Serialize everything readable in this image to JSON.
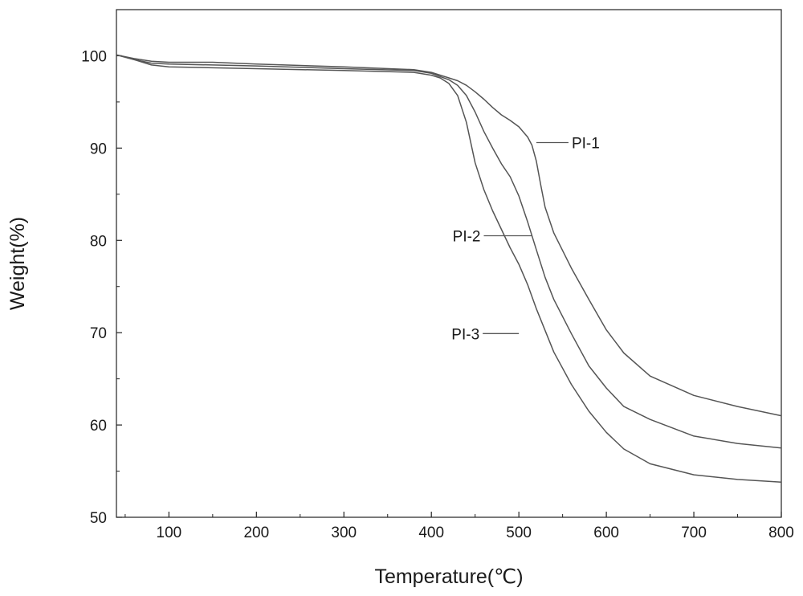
{
  "chart_data": {
    "type": "line",
    "title": "",
    "xlabel": "Temperature(℃)",
    "ylabel": "Weight(%)",
    "xlim": [
      40,
      800
    ],
    "ylim": [
      50,
      105
    ],
    "xticks": [
      100,
      200,
      300,
      400,
      500,
      600,
      700,
      800
    ],
    "yticks": [
      50,
      60,
      70,
      80,
      90,
      100
    ],
    "grid": false,
    "legend": "none",
    "line_color": "#555555",
    "series": [
      {
        "name": "PI-1",
        "label_at": [
          520,
          90.6
        ],
        "x": [
          40,
          60,
          80,
          100,
          150,
          200,
          300,
          380,
          400,
          420,
          430,
          440,
          450,
          460,
          470,
          480,
          490,
          500,
          510,
          515,
          520,
          525,
          530,
          540,
          560,
          580,
          600,
          620,
          650,
          700,
          750,
          800
        ],
        "y": [
          100.1,
          99.7,
          99.4,
          99.3,
          99.3,
          99.1,
          98.8,
          98.5,
          98.2,
          97.6,
          97.3,
          96.8,
          96.1,
          95.3,
          94.4,
          93.6,
          93.0,
          92.3,
          91.2,
          90.3,
          88.6,
          86.0,
          83.6,
          80.8,
          77.0,
          73.6,
          70.3,
          67.8,
          65.3,
          63.2,
          62.0,
          61.0
        ]
      },
      {
        "name": "PI-2",
        "label_at": [
          515,
          80.5
        ],
        "x": [
          40,
          60,
          80,
          100,
          150,
          200,
          300,
          380,
          400,
          420,
          430,
          440,
          450,
          460,
          470,
          480,
          490,
          500,
          510,
          520,
          530,
          540,
          560,
          580,
          600,
          620,
          650,
          700,
          750,
          800
        ],
        "y": [
          100.1,
          99.6,
          99.2,
          99.1,
          99.0,
          98.9,
          98.6,
          98.4,
          98.1,
          97.4,
          96.8,
          95.7,
          93.9,
          91.8,
          90.0,
          88.3,
          86.9,
          84.8,
          82.0,
          79.0,
          76.0,
          73.6,
          69.9,
          66.4,
          64.0,
          62.0,
          60.6,
          58.8,
          58.0,
          57.5
        ]
      },
      {
        "name": "PI-3",
        "label_at": [
          500,
          69.9
        ],
        "x": [
          40,
          60,
          80,
          100,
          150,
          200,
          300,
          380,
          400,
          410,
          420,
          430,
          440,
          450,
          460,
          470,
          480,
          490,
          500,
          510,
          520,
          540,
          560,
          580,
          600,
          620,
          650,
          700,
          750,
          800
        ],
        "y": [
          100.1,
          99.6,
          99.0,
          98.8,
          98.7,
          98.6,
          98.4,
          98.2,
          97.9,
          97.6,
          97.0,
          95.7,
          92.8,
          88.4,
          85.5,
          83.2,
          81.2,
          79.2,
          77.4,
          75.2,
          72.6,
          67.9,
          64.4,
          61.5,
          59.2,
          57.4,
          55.8,
          54.6,
          54.1,
          53.8
        ]
      }
    ]
  }
}
